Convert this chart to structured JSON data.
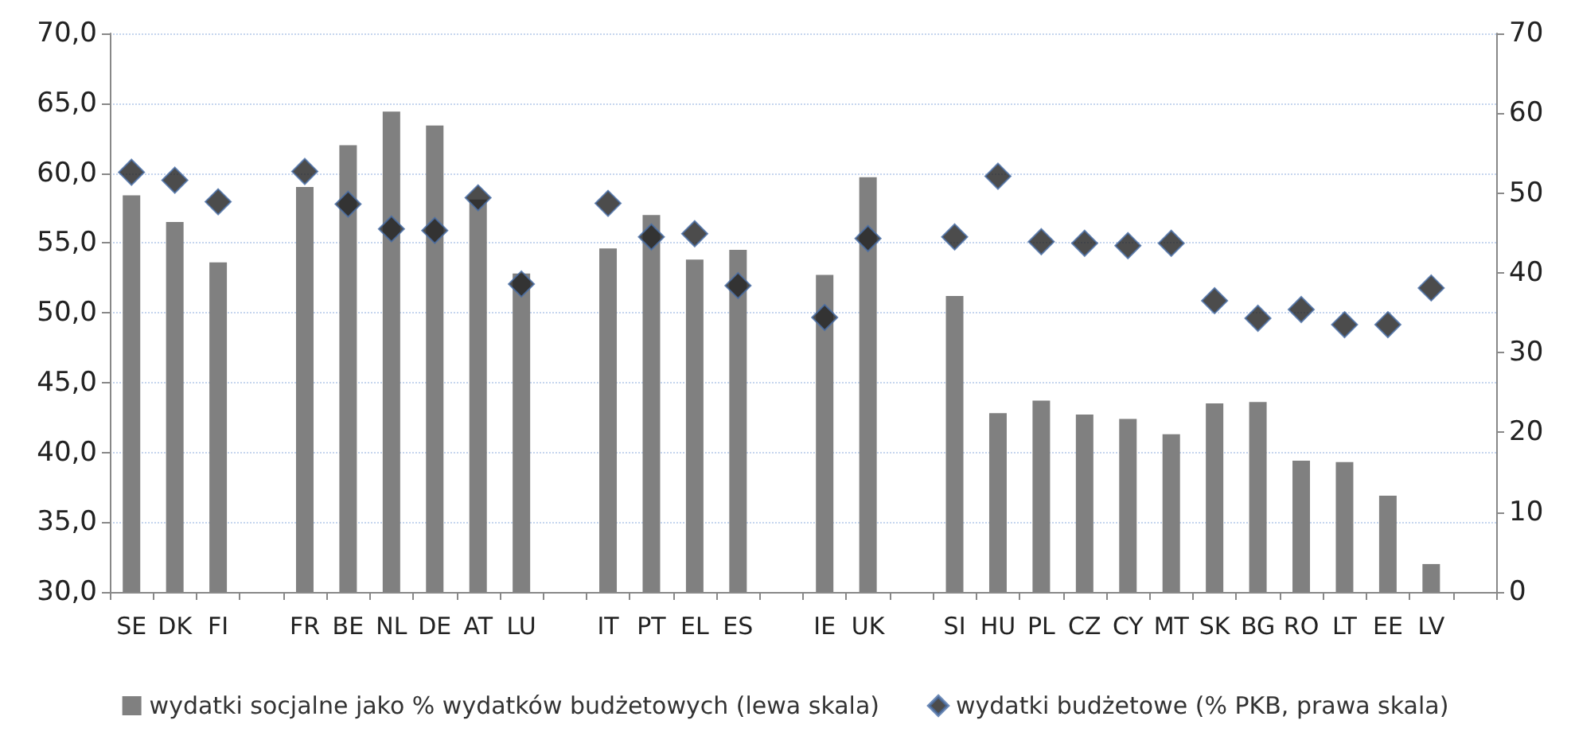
{
  "chart_data": {
    "type": "bar",
    "categories": [
      "SE",
      "DK",
      "FI",
      null,
      "FR",
      "BE",
      "NL",
      "DE",
      "AT",
      "LU",
      null,
      "IT",
      "PT",
      "EL",
      "ES",
      null,
      "IE",
      "UK",
      null,
      "SI",
      "HU",
      "PL",
      "CZ",
      "CY",
      "MT",
      "SK",
      "BG",
      "RO",
      "LT",
      "EE",
      "LV",
      null
    ],
    "series": [
      {
        "name": "wydatki socjalne jako % wydatków budżetowych (lewa skala)",
        "color": "#808080",
        "values": [
          58.4,
          56.5,
          53.6,
          null,
          59.0,
          62.0,
          64.4,
          63.4,
          58.1,
          52.8,
          null,
          54.6,
          57.0,
          53.8,
          54.5,
          null,
          52.7,
          59.7,
          null,
          51.2,
          42.8,
          43.7,
          42.7,
          42.4,
          41.3,
          43.5,
          43.6,
          39.4,
          39.3,
          36.9,
          32.0,
          null
        ]
      },
      {
        "name": "wydatki budżetowe (% PKB, prawa skala)",
        "type": "scatter",
        "axis": "y2",
        "marker": "diamond",
        "color": "#1f1f1f",
        "values": [
          52.6,
          51.6,
          48.9,
          null,
          52.7,
          48.6,
          45.5,
          45.3,
          49.4,
          38.6,
          null,
          48.7,
          44.5,
          44.9,
          38.4,
          null,
          34.4,
          44.3,
          null,
          44.5,
          52.1,
          43.9,
          43.7,
          43.4,
          43.7,
          36.5,
          34.3,
          35.4,
          33.5,
          33.5,
          38.1,
          null
        ]
      }
    ],
    "ylim": [
      30,
      70
    ],
    "yticks": [
      {
        "value": 30,
        "label": "30,0"
      },
      {
        "value": 35,
        "label": "35,0"
      },
      {
        "value": 40,
        "label": "40,0"
      },
      {
        "value": 45,
        "label": "45,0"
      },
      {
        "value": 50,
        "label": "50,0"
      },
      {
        "value": 55,
        "label": "55,0"
      },
      {
        "value": 60,
        "label": "60,0"
      },
      {
        "value": 65,
        "label": "65,0"
      },
      {
        "value": 70,
        "label": "70,0"
      }
    ],
    "y2lim": [
      0,
      70
    ],
    "y2ticks": [
      0,
      10,
      20,
      30,
      40,
      50,
      60,
      70
    ],
    "grid": "y",
    "legend": "bottom"
  }
}
